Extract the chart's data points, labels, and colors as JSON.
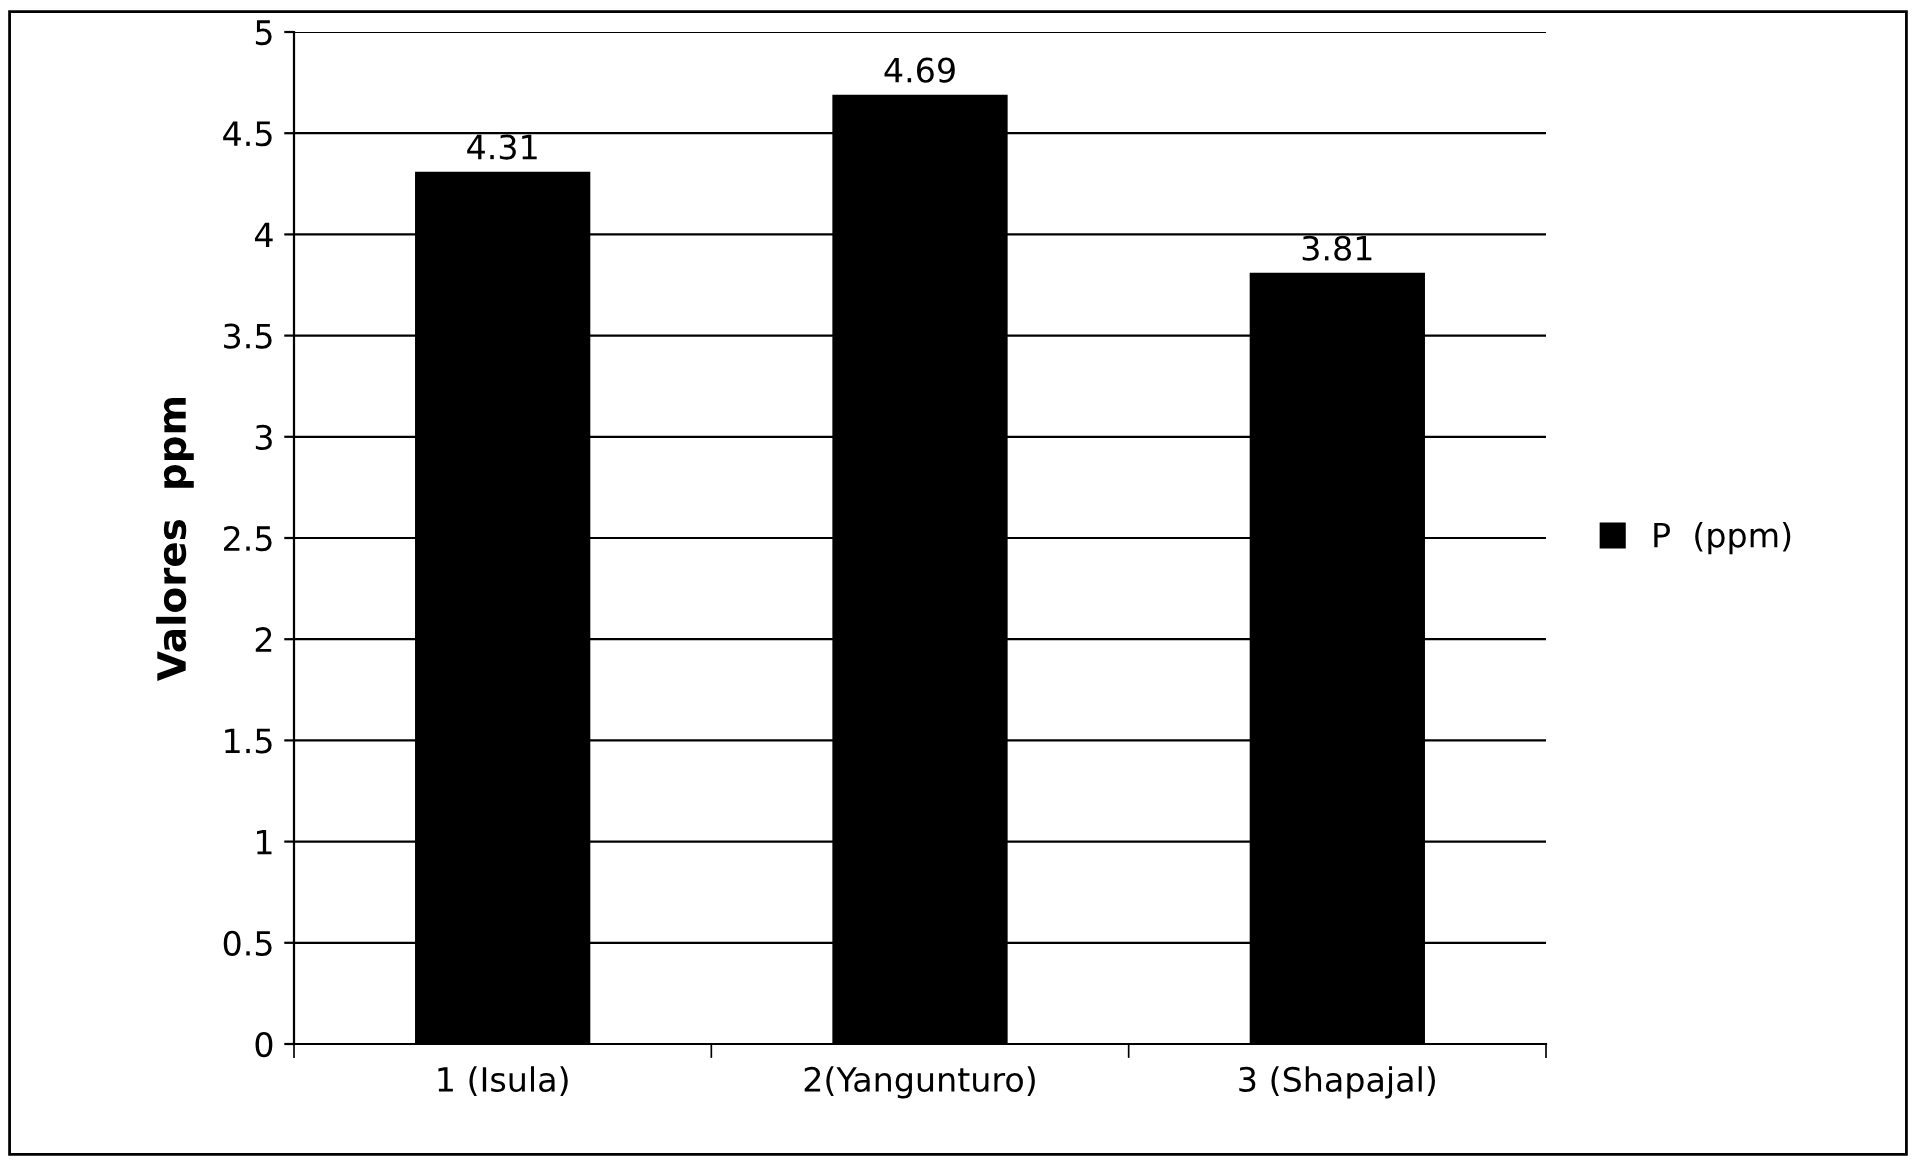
{
  "chart_data": {
    "type": "bar",
    "ylabel": "Valores  ppm",
    "categories": [
      "1 (Isula)",
      "2(Yangunturo)",
      "3 (Shapajal)"
    ],
    "series": [
      {
        "name": "P  (ppm)",
        "color": "#000000",
        "values": [
          4.31,
          4.69,
          3.81
        ]
      }
    ],
    "ylim": [
      0,
      5
    ],
    "yticks": [
      0,
      0.5,
      1,
      1.5,
      2,
      2.5,
      3,
      3.5,
      4,
      4.5,
      5
    ],
    "grid": "y",
    "legend": "right",
    "data_labels": true
  }
}
